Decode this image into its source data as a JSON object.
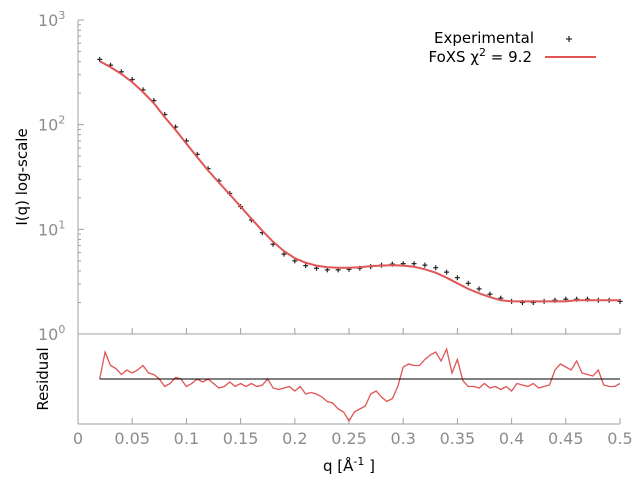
{
  "chart_data": [
    {
      "type": "scatter",
      "panel": "main",
      "xlabel": "q [Å",
      "xlabel_sup": "-1",
      "xlabel_tail": " ]",
      "ylabel": "I(q) log-scale",
      "xlim": [
        0,
        0.5
      ],
      "ylim": [
        1,
        1000
      ],
      "yscale": "log",
      "x_ticks": [
        "0",
        "0.05",
        "0.1",
        "0.15",
        "0.2",
        "0.25",
        "0.3",
        "0.35",
        "0.4",
        "0.45",
        "0.5"
      ],
      "y_ticks": [
        {
          "base": "10",
          "exp": "0"
        },
        {
          "base": "10",
          "exp": "1"
        },
        {
          "base": "10",
          "exp": "2"
        },
        {
          "base": "10",
          "exp": "3"
        }
      ],
      "legend_position": "top-right",
      "series": [
        {
          "name": "Experimental",
          "style": "points",
          "color": "#222222",
          "x": [
            0.02,
            0.03,
            0.04,
            0.05,
            0.06,
            0.07,
            0.08,
            0.09,
            0.1,
            0.11,
            0.12,
            0.13,
            0.14,
            0.15,
            0.16,
            0.17,
            0.18,
            0.19,
            0.2,
            0.21,
            0.22,
            0.23,
            0.24,
            0.25,
            0.26,
            0.27,
            0.28,
            0.29,
            0.3,
            0.31,
            0.32,
            0.33,
            0.34,
            0.35,
            0.36,
            0.37,
            0.38,
            0.39,
            0.4,
            0.41,
            0.42,
            0.43,
            0.44,
            0.45,
            0.46,
            0.47,
            0.48,
            0.49,
            0.5
          ],
          "y": [
            420,
            370,
            320,
            270,
            215,
            170,
            125,
            95,
            70,
            52,
            38,
            29,
            22,
            16.5,
            12.3,
            9.3,
            7.2,
            5.8,
            5.0,
            4.5,
            4.25,
            4.1,
            4.1,
            4.15,
            4.25,
            4.4,
            4.55,
            4.65,
            4.7,
            4.7,
            4.55,
            4.3,
            3.9,
            3.45,
            3.05,
            2.7,
            2.4,
            2.2,
            2.05,
            2.0,
            2.0,
            2.05,
            2.1,
            2.15,
            2.15,
            2.15,
            2.1,
            2.1,
            2.05
          ]
        },
        {
          "name": "FoXS χ",
          "name_sup": "2",
          "name_tail": " = 9.2",
          "style": "line",
          "color": "#e05555",
          "x": [
            0.02,
            0.03,
            0.04,
            0.05,
            0.06,
            0.07,
            0.08,
            0.09,
            0.1,
            0.11,
            0.12,
            0.13,
            0.14,
            0.15,
            0.16,
            0.17,
            0.18,
            0.19,
            0.2,
            0.21,
            0.22,
            0.23,
            0.24,
            0.25,
            0.26,
            0.27,
            0.28,
            0.29,
            0.3,
            0.31,
            0.32,
            0.33,
            0.34,
            0.35,
            0.36,
            0.37,
            0.38,
            0.39,
            0.4,
            0.41,
            0.42,
            0.43,
            0.44,
            0.45,
            0.46,
            0.47,
            0.48,
            0.49,
            0.5
          ],
          "y": [
            405,
            355,
            305,
            255,
            205,
            160,
            118,
            89,
            66,
            49,
            36.5,
            28,
            21.5,
            16.5,
            12.6,
            9.7,
            7.6,
            6.2,
            5.3,
            4.8,
            4.5,
            4.35,
            4.3,
            4.3,
            4.35,
            4.45,
            4.5,
            4.55,
            4.5,
            4.4,
            4.15,
            3.85,
            3.45,
            3.05,
            2.7,
            2.45,
            2.25,
            2.1,
            2.05,
            2.05,
            2.05,
            2.05,
            2.05,
            2.05,
            2.1,
            2.1,
            2.1,
            2.1,
            2.1
          ]
        }
      ]
    },
    {
      "type": "line",
      "panel": "residual",
      "ylabel": "Residual",
      "xlim": [
        0,
        0.5
      ],
      "ylim": [
        -3,
        3
      ],
      "series": [
        {
          "style": "line",
          "color": "#e05555",
          "x": [
            0.02,
            0.025,
            0.03,
            0.035,
            0.04,
            0.045,
            0.05,
            0.055,
            0.06,
            0.065,
            0.07,
            0.075,
            0.08,
            0.085,
            0.09,
            0.095,
            0.1,
            0.105,
            0.11,
            0.115,
            0.12,
            0.125,
            0.13,
            0.135,
            0.14,
            0.145,
            0.15,
            0.155,
            0.16,
            0.165,
            0.17,
            0.175,
            0.18,
            0.185,
            0.19,
            0.195,
            0.2,
            0.205,
            0.21,
            0.215,
            0.22,
            0.225,
            0.23,
            0.235,
            0.24,
            0.245,
            0.25,
            0.255,
            0.26,
            0.265,
            0.27,
            0.275,
            0.28,
            0.285,
            0.29,
            0.295,
            0.3,
            0.305,
            0.31,
            0.315,
            0.32,
            0.325,
            0.33,
            0.335,
            0.34,
            0.345,
            0.35,
            0.355,
            0.36,
            0.365,
            0.37,
            0.375,
            0.38,
            0.385,
            0.39,
            0.395,
            0.4,
            0.405,
            0.41,
            0.415,
            0.42,
            0.425,
            0.43,
            0.435,
            0.44,
            0.445,
            0.45,
            0.455,
            0.46,
            0.465,
            0.47,
            0.475,
            0.48,
            0.485,
            0.49,
            0.495,
            0.5
          ],
          "y": [
            0.0,
            1.8,
            0.9,
            0.7,
            0.3,
            0.6,
            0.4,
            0.6,
            0.9,
            0.4,
            0.3,
            0.0,
            -0.5,
            -0.3,
            0.1,
            0.0,
            -0.5,
            -0.3,
            0.0,
            -0.2,
            0.0,
            -0.3,
            -0.6,
            -0.5,
            -0.2,
            -0.5,
            -0.3,
            -0.5,
            -0.3,
            -0.5,
            -0.4,
            0.0,
            -0.6,
            -0.7,
            -0.6,
            -0.5,
            -0.8,
            -0.5,
            -1.0,
            -0.9,
            -1.0,
            -1.2,
            -1.5,
            -1.6,
            -2.0,
            -2.2,
            -2.8,
            -2.2,
            -2.0,
            -1.8,
            -1.0,
            -0.8,
            -1.2,
            -1.5,
            -1.3,
            -0.5,
            0.8,
            1.0,
            0.9,
            0.9,
            1.3,
            1.6,
            1.8,
            1.2,
            2.0,
            0.4,
            1.3,
            -0.1,
            -0.5,
            -0.5,
            -0.6,
            -0.3,
            -0.6,
            -0.5,
            -0.7,
            -0.5,
            -0.8,
            -0.3,
            -0.4,
            -0.5,
            -0.3,
            -0.6,
            -0.5,
            -0.4,
            0.6,
            1.0,
            0.8,
            0.6,
            1.2,
            0.4,
            0.3,
            0.2,
            0.6,
            -0.4,
            -0.5,
            -0.5,
            -0.3
          ]
        },
        {
          "style": "line",
          "color": "#000000",
          "x": [
            0.02,
            0.5
          ],
          "y": [
            0,
            0
          ]
        }
      ]
    }
  ]
}
